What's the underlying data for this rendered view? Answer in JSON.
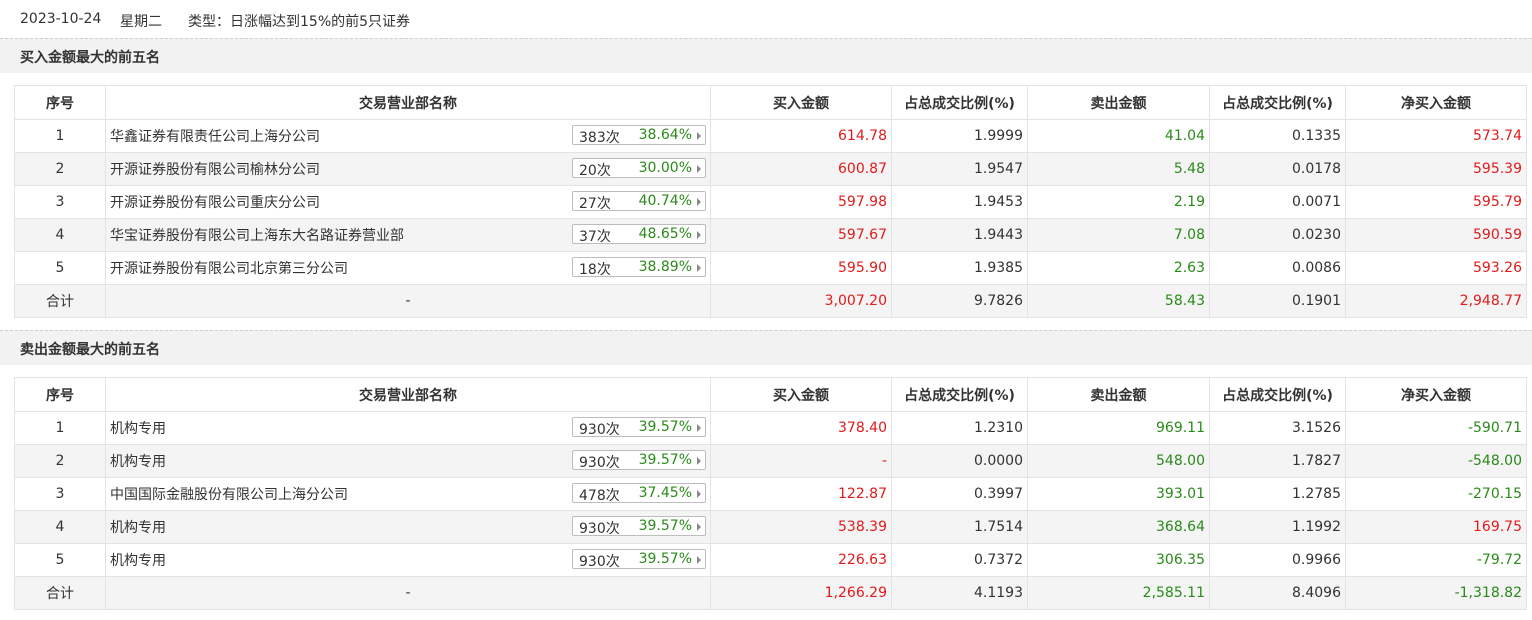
{
  "header": {
    "date": "2023-10-24",
    "weekday": "星期二",
    "type_label": "类型：日涨幅达到15%的前5只证券"
  },
  "columns": [
    "序号",
    "交易营业部名称",
    "买入金额",
    "占总成交比例(%)",
    "卖出金额",
    "占总成交比例(%)",
    "净买入金额"
  ],
  "buy_section": {
    "title": "买入金额最大的前五名",
    "rows": [
      {
        "idx": "1",
        "name": "华鑫证券有限责任公司上海分公司",
        "count": "383次",
        "rate": "38.64%",
        "buy": "614.78",
        "buy_pct": "1.9999",
        "sell": "41.04",
        "sell_pct": "0.1335",
        "net": "573.74"
      },
      {
        "idx": "2",
        "name": "开源证券股份有限公司榆林分公司",
        "count": "20次",
        "rate": "30.00%",
        "buy": "600.87",
        "buy_pct": "1.9547",
        "sell": "5.48",
        "sell_pct": "0.0178",
        "net": "595.39"
      },
      {
        "idx": "3",
        "name": "开源证券股份有限公司重庆分公司",
        "count": "27次",
        "rate": "40.74%",
        "buy": "597.98",
        "buy_pct": "1.9453",
        "sell": "2.19",
        "sell_pct": "0.0071",
        "net": "595.79"
      },
      {
        "idx": "4",
        "name": "华宝证券股份有限公司上海东大名路证券营业部",
        "count": "37次",
        "rate": "48.65%",
        "buy": "597.67",
        "buy_pct": "1.9443",
        "sell": "7.08",
        "sell_pct": "0.0230",
        "net": "590.59"
      },
      {
        "idx": "5",
        "name": "开源证券股份有限公司北京第三分公司",
        "count": "18次",
        "rate": "38.89%",
        "buy": "595.90",
        "buy_pct": "1.9385",
        "sell": "2.63",
        "sell_pct": "0.0086",
        "net": "593.26"
      }
    ],
    "total": {
      "label": "合计",
      "name": "-",
      "buy": "3,007.20",
      "buy_pct": "9.7826",
      "sell": "58.43",
      "sell_pct": "0.1901",
      "net": "2,948.77"
    }
  },
  "sell_section": {
    "title": "卖出金额最大的前五名",
    "rows": [
      {
        "idx": "1",
        "name": "机构专用",
        "count": "930次",
        "rate": "39.57%",
        "buy": "378.40",
        "buy_pct": "1.2310",
        "sell": "969.11",
        "sell_pct": "3.1526",
        "net": "-590.71"
      },
      {
        "idx": "2",
        "name": "机构专用",
        "count": "930次",
        "rate": "39.57%",
        "buy": "-",
        "buy_pct": "0.0000",
        "sell": "548.00",
        "sell_pct": "1.7827",
        "net": "-548.00"
      },
      {
        "idx": "3",
        "name": "中国国际金融股份有限公司上海分公司",
        "count": "478次",
        "rate": "37.45%",
        "buy": "122.87",
        "buy_pct": "0.3997",
        "sell": "393.01",
        "sell_pct": "1.2785",
        "net": "-270.15"
      },
      {
        "idx": "4",
        "name": "机构专用",
        "count": "930次",
        "rate": "39.57%",
        "buy": "538.39",
        "buy_pct": "1.7514",
        "sell": "368.64",
        "sell_pct": "1.1992",
        "net": "169.75"
      },
      {
        "idx": "5",
        "name": "机构专用",
        "count": "930次",
        "rate": "39.57%",
        "buy": "226.63",
        "buy_pct": "0.7372",
        "sell": "306.35",
        "sell_pct": "0.9966",
        "net": "-79.72"
      }
    ],
    "total": {
      "label": "合计",
      "name": "-",
      "buy": "1,266.29",
      "buy_pct": "4.1193",
      "sell": "2,585.11",
      "sell_pct": "8.4096",
      "net": "-1,318.82"
    }
  },
  "colors": {
    "positive": "#e21a1a",
    "negative": "#2a8a1a",
    "header_bg": "#f2f2f2",
    "stripe_bg": "#f4f4f4"
  }
}
